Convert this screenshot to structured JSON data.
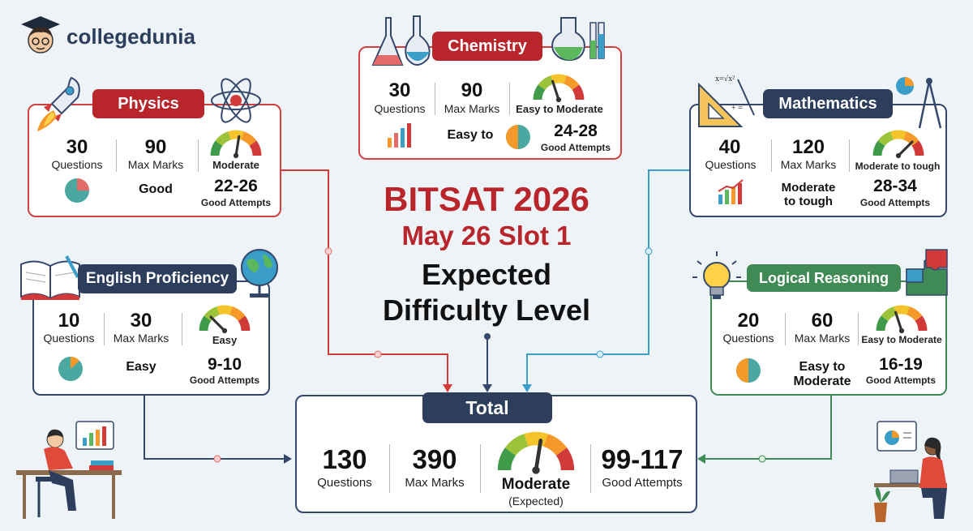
{
  "brand": {
    "name": "collegedunia"
  },
  "headline": {
    "line1": "BITSAT 2026",
    "line2": "May 26 Slot 1",
    "line3": "Expected",
    "line4": "Difficulty Level"
  },
  "labels": {
    "questions": "Questions",
    "max_marks": "Max Marks",
    "good_attempts": "Good Attempts"
  },
  "subjects": {
    "physics": {
      "name": "Physics",
      "questions": "30",
      "max_marks": "90",
      "difficulty": "Moderate",
      "overall": "Good",
      "attempts": "22-26",
      "gauge_level": 0.55
    },
    "chemistry": {
      "name": "Chemistry",
      "questions": "30",
      "max_marks": "90",
      "difficulty": "Easy to Moderate",
      "overall": "Easy to",
      "attempts": "24-28",
      "gauge_level": 0.4
    },
    "mathematics": {
      "name": "Mathematics",
      "questions": "40",
      "max_marks": "120",
      "difficulty": "Moderate to tough",
      "overall": "Moderate to tough",
      "attempts": "28-34",
      "gauge_level": 0.75
    },
    "english": {
      "name": "English Proficiency",
      "questions": "10",
      "max_marks": "30",
      "difficulty": "Easy",
      "overall": "Easy",
      "attempts": "9-10",
      "gauge_level": 0.25
    },
    "logical": {
      "name": "Logical Reasoning",
      "questions": "20",
      "max_marks": "60",
      "difficulty": "Easy to Moderate",
      "overall": "Easy to Moderate",
      "attempts": "16-19",
      "gauge_level": 0.4
    }
  },
  "total": {
    "title": "Total",
    "questions": "130",
    "max_marks": "390",
    "difficulty": "Moderate",
    "difficulty_note": "(Expected)",
    "attempts": "99-117",
    "gauge_level": 0.55
  },
  "colors": {
    "physics": "#b8262c",
    "chemistry": "#b8262c",
    "mathematics": "#2c3e5c",
    "english": "#2c3e5c",
    "logical": "#3f8a55",
    "total": "#2c3e5c",
    "headline_red": "#b8262c"
  },
  "icons": [
    "rocket-icon",
    "atom-icon",
    "flask-icon",
    "protractor-icon",
    "compass-icon",
    "book-icon",
    "globe-icon",
    "bulb-icon",
    "puzzle-icon",
    "student-icon",
    "teacher-icon"
  ]
}
